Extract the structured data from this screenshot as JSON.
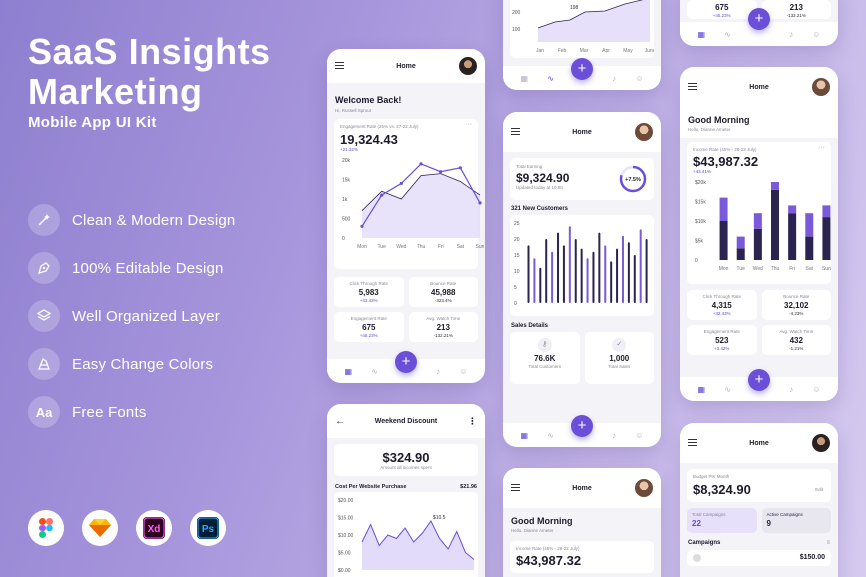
{
  "hero": {
    "title_line1": "SaaS Insights",
    "title_line2": "Marketing",
    "subtitle": "Mobile App UI Kit"
  },
  "features": [
    {
      "icon": "magic-wand-icon",
      "label": "Clean & Modern Design"
    },
    {
      "icon": "pen-tool-icon",
      "label": "100% Editable Design"
    },
    {
      "icon": "layers-icon",
      "label": "Well Organized Layer"
    },
    {
      "icon": "palette-icon",
      "label": "Easy Change Colors"
    },
    {
      "icon": "font-icon",
      "label": "Free Fonts",
      "glyph": "Aa"
    }
  ],
  "tools": [
    "figma",
    "sketch",
    "xd",
    "photoshop"
  ],
  "colors": {
    "accent": "#6b4fd8",
    "dark_bar": "#2b2350",
    "light_bar": "#7a5ad8"
  },
  "phone1": {
    "title": "Home",
    "greeting": "Welcome Back!",
    "user": "Hi, Russell Sprout",
    "metric_label": "Engagement Rate (25% vs. 27-22 July)",
    "metric_value": "19,324.43",
    "metric_change": "+21.32%",
    "y_ticks": [
      "20k",
      "15k",
      "1k",
      "500",
      "0"
    ],
    "days": [
      "Mon",
      "Tue",
      "Wed",
      "Thu",
      "Fri",
      "Sat",
      "Sun"
    ],
    "stats": [
      {
        "label": "Click Through Rate",
        "value": "5,983",
        "change": "+43.43%"
      },
      {
        "label": "Bounce Rate",
        "value": "45,988",
        "change": "-323.4%"
      },
      {
        "label": "Engagement Rate",
        "value": "675",
        "change": "+45.23%"
      },
      {
        "label": "Avg. Watch Time",
        "value": "213",
        "change": "-132.21%"
      }
    ]
  },
  "phone2": {
    "title": "Weekend Discount",
    "amount": "$324.90",
    "amount_sub": "Amount all incomes spent",
    "section": "Cost Per Website Purchase",
    "section_value": "$21.96",
    "y_ticks": [
      "$20.00",
      "$15.00",
      "$10.00",
      "$5.00",
      "$0.00"
    ],
    "peak": "$10.5"
  },
  "phone3": {
    "y_ticks": [
      "200",
      "100"
    ],
    "peak": "198",
    "months": [
      "Jan",
      "Feb",
      "Mar",
      "Apr",
      "May",
      "June"
    ]
  },
  "phone4": {
    "title": "Home",
    "total_label": "Total Earning",
    "total_value": "$9,324.90",
    "total_sub": "Updated today at 10:00",
    "ring": "+7.5%",
    "customers_title": "321 New Customers",
    "y_ticks": [
      "25",
      "20",
      "15",
      "10",
      "5",
      "0"
    ],
    "sales_title": "Sales Details",
    "sales": [
      {
        "value": "76.6K",
        "label": "Total Customers"
      },
      {
        "value": "1,000",
        "label": "Total Sales"
      }
    ]
  },
  "phone5": {
    "title": "Home",
    "greeting": "Good Morning",
    "user": "Hello, Dianne Ameter",
    "income_label": "Income Rate (45% - 28-22 July)",
    "income_value": "$43,987.32"
  },
  "phone6": {
    "stats": [
      {
        "value": "675",
        "change": "+45.23%"
      },
      {
        "value": "213",
        "change": "-132.21%"
      }
    ]
  },
  "phone7": {
    "title": "Home",
    "greeting": "Good Morning",
    "user": "Hello, Dianne Ameter",
    "income_label": "Income Rate (45% - 28-22 July)",
    "income_value": "$43,987.32",
    "income_change": "+43.41%",
    "y_ticks": [
      "$20k",
      "$15k",
      "$10k",
      "$5k",
      "0"
    ],
    "days": [
      "Mon",
      "Tue",
      "Wed",
      "Thu",
      "Fri",
      "Sat",
      "Sun"
    ],
    "stats": [
      {
        "label": "Click Through Rate",
        "value": "4,315",
        "change": "+32.43%"
      },
      {
        "label": "Bounce Rate",
        "value": "32,102",
        "change": "-4.23%"
      },
      {
        "label": "Engagement Rate",
        "value": "523",
        "change": "+3.42%"
      },
      {
        "label": "Avg. Watch Time",
        "value": "432",
        "change": "-1.21%"
      }
    ]
  },
  "phone8": {
    "title": "Home",
    "budget_label": "Budget Per Month",
    "budget_value": "$8,324.90",
    "edit": "Edit",
    "total_campaigns_label": "Total Campaigns",
    "total_campaigns": "22",
    "active_campaigns_label": "Active Campaigns",
    "active_campaigns": "9",
    "campaigns_title": "Campaigns",
    "campaign_amount": "$150.00"
  },
  "chart_data": [
    {
      "type": "line",
      "title": "Engagement Rate (25% vs. 27-22 July)",
      "categories": [
        "Mon",
        "Tue",
        "Wed",
        "Thu",
        "Fri",
        "Sat",
        "Sun"
      ],
      "series": [
        {
          "values": [
            3000,
            11000,
            14000,
            19000,
            17000,
            18000,
            9000
          ]
        },
        {
          "values": [
            7000,
            12000,
            10000,
            16000,
            16500,
            14500,
            11000
          ]
        }
      ],
      "ylim": [
        0,
        20000
      ]
    },
    {
      "type": "bar",
      "title": "Income Rate (45% - 28-22 July)",
      "categories": [
        "Mon",
        "Tue",
        "Wed",
        "Thu",
        "Fri",
        "Sat",
        "Sun"
      ],
      "series": [
        {
          "values": [
            10000,
            3000,
            8000,
            18000,
            12000,
            6000,
            11000
          ]
        },
        {
          "values": [
            6000,
            3000,
            4000,
            2000,
            2000,
            6000,
            3000
          ]
        }
      ],
      "ylim": [
        0,
        20000
      ]
    },
    {
      "type": "bar",
      "title": "321 New Customers",
      "values": [
        18,
        14,
        11,
        20,
        16,
        22,
        18,
        24,
        20,
        17,
        14,
        16,
        22,
        18,
        13,
        17,
        21,
        19,
        15,
        23,
        20
      ],
      "ylim": [
        0,
        25
      ]
    },
    {
      "type": "line",
      "title": "Cost Per Website Purchase",
      "values": [
        8,
        13,
        7,
        10,
        9,
        12,
        8,
        10.5,
        14,
        9,
        6,
        11,
        5,
        3
      ],
      "ylim": [
        0,
        20
      ]
    }
  ]
}
